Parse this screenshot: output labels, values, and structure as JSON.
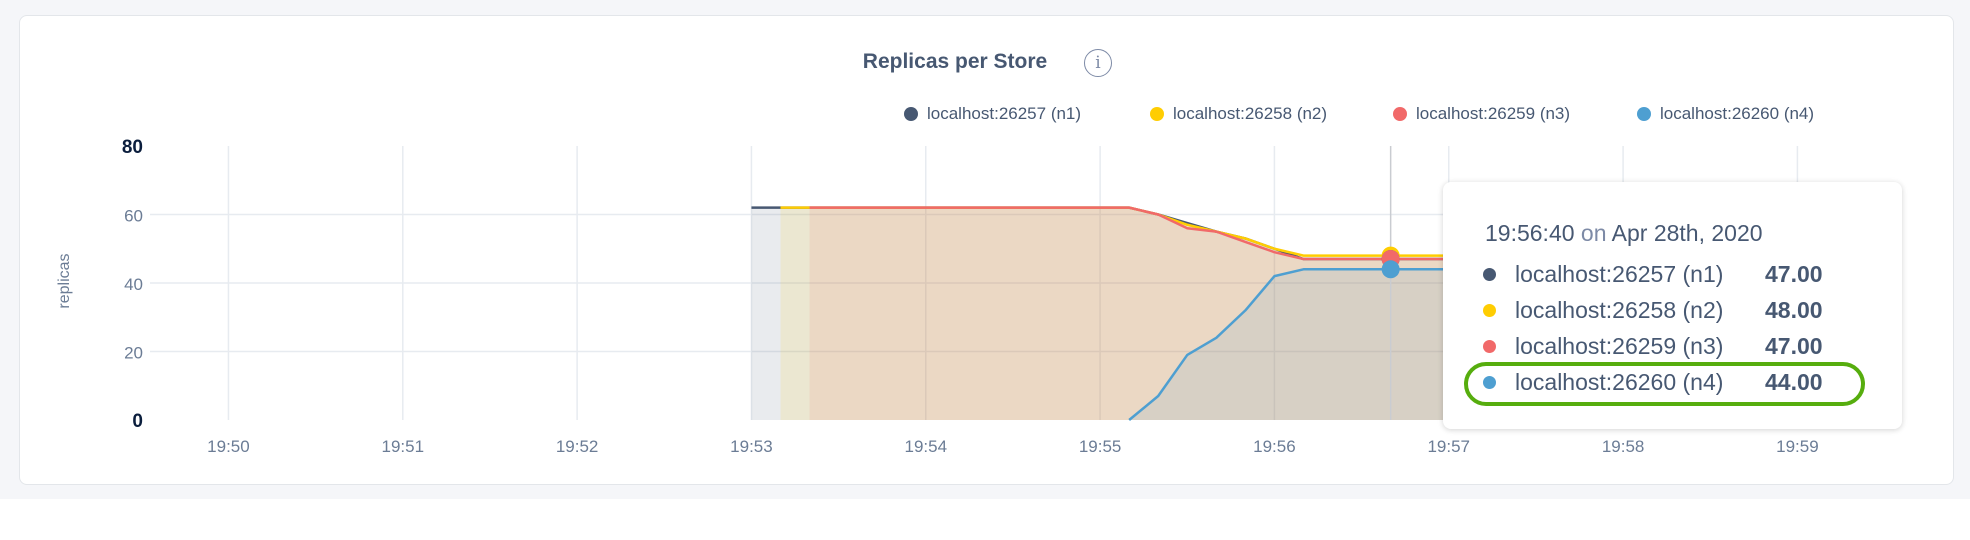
{
  "colors": {
    "n1": "#475872",
    "n2": "#ffcd02",
    "n3": "#f16969",
    "n4": "#4e9fd1",
    "highlight": "#56ad0e"
  },
  "info_icon": "info-circle-icon",
  "chart_data": {
    "type": "area",
    "title": "Replicas per Store",
    "ylabel": "replicas",
    "xlabel": "",
    "ylim": [
      0,
      80
    ],
    "xlim": [
      "19:49:33",
      "19:59:15"
    ],
    "yticks": [
      "0",
      "20",
      "40",
      "60",
      "80"
    ],
    "xticks": [
      "19:50",
      "19:51",
      "19:52",
      "19:53",
      "19:54",
      "19:55",
      "19:56",
      "19:57",
      "19:58",
      "19:59"
    ],
    "grid": true,
    "legend_position": "top-right",
    "x": [
      "19:53:00",
      "19:53:10",
      "19:53:20",
      "19:53:30",
      "19:53:40",
      "19:53:50",
      "19:54:00",
      "19:54:10",
      "19:54:20",
      "19:54:30",
      "19:54:40",
      "19:54:50",
      "19:55:00",
      "19:55:10",
      "19:55:20",
      "19:55:30",
      "19:55:40",
      "19:55:50",
      "19:56:00",
      "19:56:10",
      "19:56:20",
      "19:56:30",
      "19:56:40",
      "19:56:50",
      "19:57:00",
      "19:57:10",
      "19:57:20"
    ],
    "series": [
      {
        "name": "localhost:26257 (n1)",
        "values": [
          62,
          62,
          62,
          62,
          62,
          62,
          62,
          62,
          62,
          62,
          62,
          62,
          62,
          62,
          60,
          57.5,
          55,
          53,
          50,
          47,
          47,
          47,
          47,
          47,
          47,
          47,
          47
        ]
      },
      {
        "name": "localhost:26258 (n2)",
        "values": [
          null,
          62,
          62,
          62,
          62,
          62,
          62,
          62,
          62,
          62,
          62,
          62,
          62,
          62,
          60,
          57,
          55,
          53,
          50,
          48,
          48,
          48,
          48,
          48,
          48,
          48,
          48
        ]
      },
      {
        "name": "localhost:26259 (n3)",
        "values": [
          null,
          null,
          62,
          62,
          62,
          62,
          62,
          62,
          62,
          62,
          62,
          62,
          62,
          62,
          60,
          56,
          55,
          52,
          49,
          47,
          47,
          47,
          47,
          47,
          47,
          47,
          47
        ]
      },
      {
        "name": "localhost:26260 (n4)",
        "values": [
          null,
          null,
          null,
          null,
          null,
          null,
          null,
          null,
          null,
          null,
          null,
          null,
          null,
          0,
          7,
          19,
          24,
          32,
          42,
          44,
          44,
          44,
          44,
          44,
          44,
          44,
          44
        ]
      }
    ],
    "hover": {
      "time": "19:56:40"
    }
  },
  "tooltip": {
    "time": "19:56:40",
    "on": "on",
    "date": "Apr 28th, 2020",
    "rows": [
      {
        "name": "localhost:26257 (n1)",
        "value": "47.00"
      },
      {
        "name": "localhost:26258 (n2)",
        "value": "48.00"
      },
      {
        "name": "localhost:26259 (n3)",
        "value": "47.00"
      },
      {
        "name": "localhost:26260 (n4)",
        "value": "44.00"
      }
    ]
  }
}
